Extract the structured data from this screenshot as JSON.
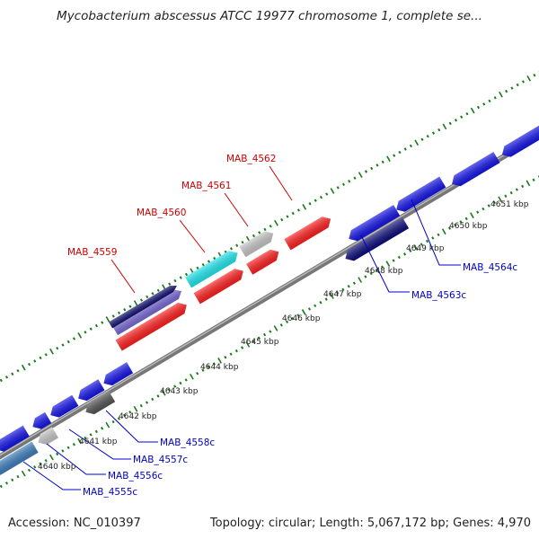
{
  "title": "Mycobacterium abscessus ATCC 19977 chromosome 1, complete se...",
  "footer": {
    "accession": "Accession: NC_010397",
    "topology": "Topology: circular; Length: 5,067,172 bp; Genes: 4,970"
  },
  "colors": {
    "label_forward": "#cc0000",
    "label_reverse": "#0000cc",
    "backbone": "#888888",
    "ticks": "#1a7a1a"
  },
  "tick_labels": [
    "4640 kbp",
    "4641 kbp",
    "4642 kbp",
    "4643 kbp",
    "4644 kbp",
    "4645 kbp",
    "4646 kbp",
    "4647 kbp",
    "4648 kbp",
    "4649 kbp",
    "4650 kbp",
    "4651 kbp"
  ],
  "gene_labels_forward": [
    "MAB_4559",
    "MAB_4560",
    "MAB_4561",
    "MAB_4562"
  ],
  "gene_labels_reverse": [
    "MAB_4555c",
    "MAB_4556c",
    "MAB_4557c",
    "MAB_4558c",
    "MAB_4563c",
    "MAB_4564c"
  ]
}
